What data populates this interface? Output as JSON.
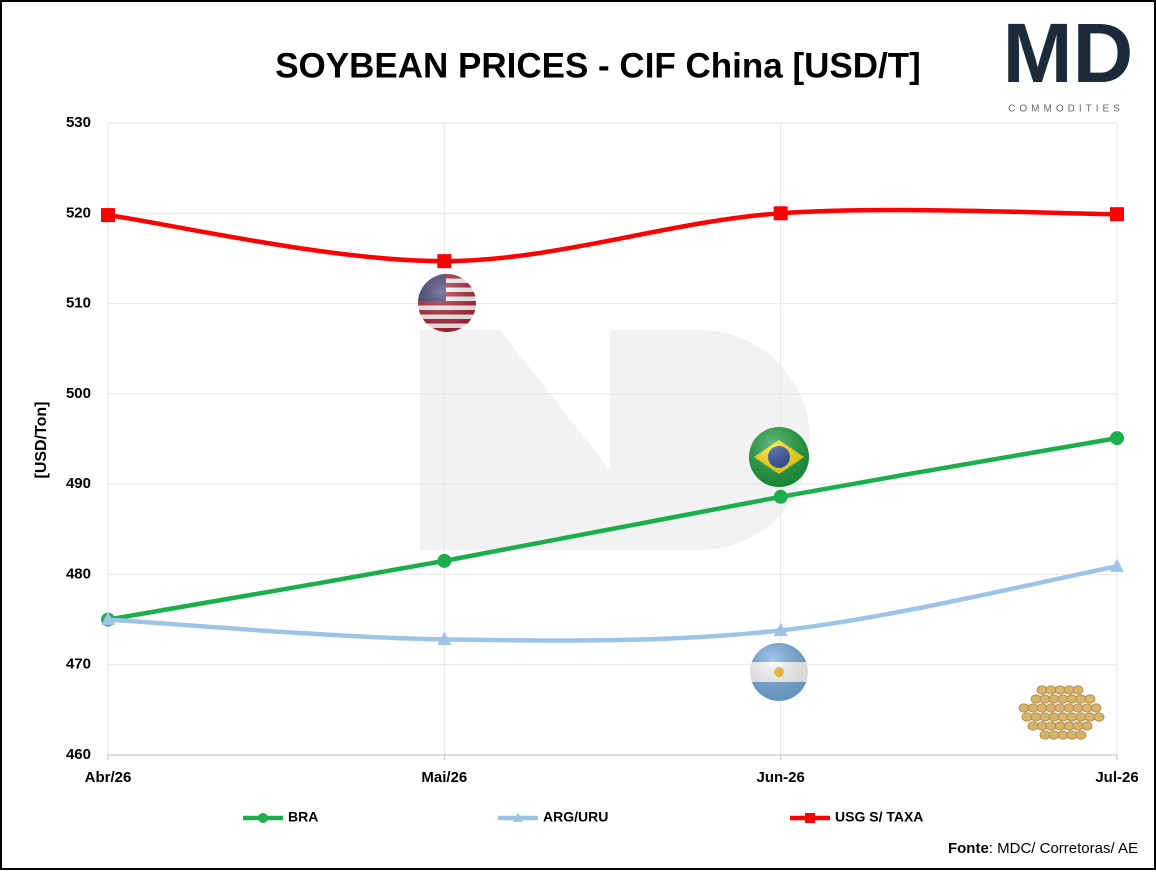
{
  "chart_data": {
    "type": "line",
    "title": "SOYBEAN PRICES - CIF China [USD/T]",
    "y_label": "[USD/Ton]",
    "categories": [
      "Abr/26",
      "Mai/26",
      "Jun-26",
      "Jul-26"
    ],
    "series": [
      {
        "name": "BRA",
        "color": "#1aae4c",
        "marker": "circle",
        "values": [
          475,
          481.5,
          488.6,
          495.1
        ]
      },
      {
        "name": "ARG/URU",
        "color": "#9dc3e6",
        "marker": "triangle",
        "values": [
          475,
          472.8,
          473.8,
          480.9
        ]
      },
      {
        "name": "USG S/ TAXA",
        "color": "#ff0000",
        "marker": "square",
        "values": [
          519.8,
          514.7,
          520,
          519.9
        ]
      }
    ],
    "ylim": [
      460,
      530
    ],
    "yticks": [
      460,
      470,
      480,
      490,
      500,
      510,
      520,
      530
    ],
    "grid": true,
    "smooth": true,
    "legend": "bottom",
    "source_label": "Fonte",
    "source_text": ": MDC/ Corretoras/ AE",
    "logo_mark": "MD",
    "logo_tagline": "COMMODITIES"
  }
}
